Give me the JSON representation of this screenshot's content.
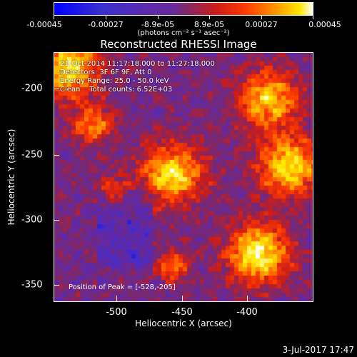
{
  "colorbar": {
    "labels": [
      "-0.00045",
      "-0.00027",
      "-8.9e-05",
      "8.9e-05",
      "0.00027",
      "0.00045"
    ],
    "units": "(photons cm⁻² s⁻¹ asec⁻²)"
  },
  "title": "Reconstructed RHESSI Image",
  "info": {
    "time": "21-Oct-2014 11:17:18.000 to 11:27:18.000",
    "detectors": "Detectors: 3F 6F 9F, Att 0",
    "energy": "Energy Range: 25.0 - 50.0 keV",
    "counts": "Clean    Total counts: 6.52E+03",
    "peak": "Position of Peak = [-528,-205]"
  },
  "axes": {
    "xlabel": "Heliocentric X (arcsec)",
    "ylabel": "Heliocentric Y (arcsec)",
    "xticks": [
      "-500",
      "-450",
      "-400"
    ],
    "yticks": [
      "-200",
      "-250",
      "-300",
      "-350"
    ]
  },
  "footer": {
    "date": "3-Jul-2017 17:47"
  }
}
